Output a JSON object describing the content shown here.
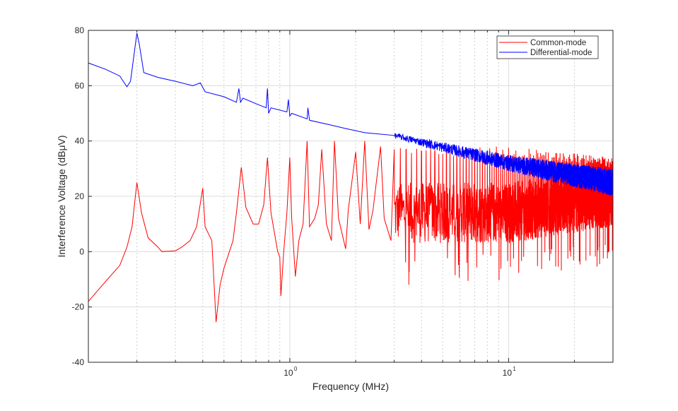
{
  "chart_data": {
    "type": "line",
    "title": "",
    "xlabel": "Frequency (MHz)",
    "ylabel": "Interference Voltage (dBμV)",
    "xscale": "log",
    "xlim": [
      0.12,
      30
    ],
    "ylim": [
      -40,
      80
    ],
    "yticks": [
      -40,
      -20,
      0,
      20,
      40,
      60,
      80
    ],
    "ytick_labels": [
      "-40",
      "-20",
      "0",
      "20",
      "40",
      "60",
      "80"
    ],
    "xticks": [
      1,
      10
    ],
    "xtick_labels": [
      {
        "base": "10",
        "exp": "0"
      },
      {
        "base": "10",
        "exp": "1"
      }
    ],
    "grid": true,
    "legend": {
      "placement": "top-right",
      "entries": [
        "Common-mode",
        "Differential-mode"
      ]
    },
    "series": [
      {
        "name": "Common-mode",
        "color": "#ff0000",
        "points": [
          [
            0.12,
            -18
          ],
          [
            0.143,
            -11
          ],
          [
            0.167,
            -5
          ],
          [
            0.18,
            1.6
          ],
          [
            0.19,
            9
          ],
          [
            0.2,
            25
          ],
          [
            0.21,
            14
          ],
          [
            0.225,
            5
          ],
          [
            0.25,
            1.6
          ],
          [
            0.26,
            0
          ],
          [
            0.3,
            0.3
          ],
          [
            0.32,
            1.6
          ],
          [
            0.35,
            4
          ],
          [
            0.375,
            9
          ],
          [
            0.4,
            23
          ],
          [
            0.41,
            9
          ],
          [
            0.44,
            4
          ],
          [
            0.46,
            -25.5
          ],
          [
            0.48,
            -12
          ],
          [
            0.5,
            -6
          ],
          [
            0.55,
            4
          ],
          [
            0.57,
            14
          ],
          [
            0.6,
            30.5
          ],
          [
            0.63,
            16
          ],
          [
            0.68,
            10
          ],
          [
            0.72,
            10
          ],
          [
            0.76,
            17
          ],
          [
            0.79,
            34
          ],
          [
            0.82,
            14
          ],
          [
            0.88,
            0
          ],
          [
            0.9,
            -2
          ],
          [
            0.91,
            -16
          ],
          [
            0.94,
            1
          ],
          [
            0.97,
            14
          ],
          [
            1.0,
            34
          ],
          [
            1.02,
            12
          ],
          [
            1.06,
            -9
          ],
          [
            1.1,
            4
          ],
          [
            1.15,
            10
          ],
          [
            1.2,
            40
          ],
          [
            1.23,
            9
          ],
          [
            1.3,
            12
          ],
          [
            1.35,
            17
          ],
          [
            1.4,
            37
          ],
          [
            1.47,
            10
          ],
          [
            1.55,
            4
          ],
          [
            1.6,
            40
          ],
          [
            1.67,
            12
          ],
          [
            1.8,
            1
          ],
          [
            1.85,
            15
          ],
          [
            2.0,
            36
          ],
          [
            2.1,
            10
          ],
          [
            2.2,
            40
          ],
          [
            2.3,
            8
          ],
          [
            2.4,
            15
          ],
          [
            2.6,
            38
          ],
          [
            2.7,
            12
          ],
          [
            2.9,
            4
          ],
          [
            3.0,
            37
          ]
        ],
        "dense_region": {
          "from": 3.0,
          "to": 30,
          "harmonic_spacing": 0.2,
          "peak_trend": [
            [
              3,
              38
            ],
            [
              10,
              38
            ],
            [
              30,
              34
            ]
          ],
          "floor_trend": [
            [
              3,
              14
            ],
            [
              10,
              14
            ],
            [
              30,
              20
            ]
          ],
          "min_dips": [
            [
              3.5,
              -12
            ],
            [
              10.2,
              -5.5
            ]
          ]
        }
      },
      {
        "name": "Differential-mode",
        "color": "#0000ff",
        "points": [
          [
            0.12,
            68.2
          ],
          [
            0.143,
            66
          ],
          [
            0.167,
            63.5
          ],
          [
            0.18,
            59.6
          ],
          [
            0.187,
            61.6
          ],
          [
            0.2,
            79
          ],
          [
            0.205,
            75
          ],
          [
            0.215,
            64.7
          ],
          [
            0.25,
            63
          ],
          [
            0.3,
            61.6
          ],
          [
            0.36,
            60
          ],
          [
            0.39,
            61
          ],
          [
            0.41,
            57.8
          ],
          [
            0.5,
            56
          ],
          [
            0.57,
            54
          ],
          [
            0.585,
            59
          ],
          [
            0.595,
            54
          ],
          [
            0.61,
            55.5
          ],
          [
            0.7,
            53.5
          ],
          [
            0.78,
            52
          ],
          [
            0.79,
            59
          ],
          [
            0.8,
            50
          ],
          [
            0.82,
            52
          ],
          [
            0.97,
            50.5
          ],
          [
            0.985,
            55
          ],
          [
            1.0,
            49
          ],
          [
            1.02,
            50
          ],
          [
            1.2,
            48
          ],
          [
            1.21,
            52
          ],
          [
            1.23,
            47.5
          ],
          [
            1.5,
            46
          ],
          [
            1.8,
            44.5
          ],
          [
            2.2,
            43
          ],
          [
            3,
            42
          ]
        ],
        "dense_region": {
          "from": 3.0,
          "to": 30,
          "trend": [
            [
              3,
              42
            ],
            [
              10,
              32
            ],
            [
              30,
              25
            ]
          ],
          "spread_trend": [
            [
              3,
              1
            ],
            [
              10,
              3
            ],
            [
              30,
              5
            ]
          ]
        }
      }
    ]
  }
}
